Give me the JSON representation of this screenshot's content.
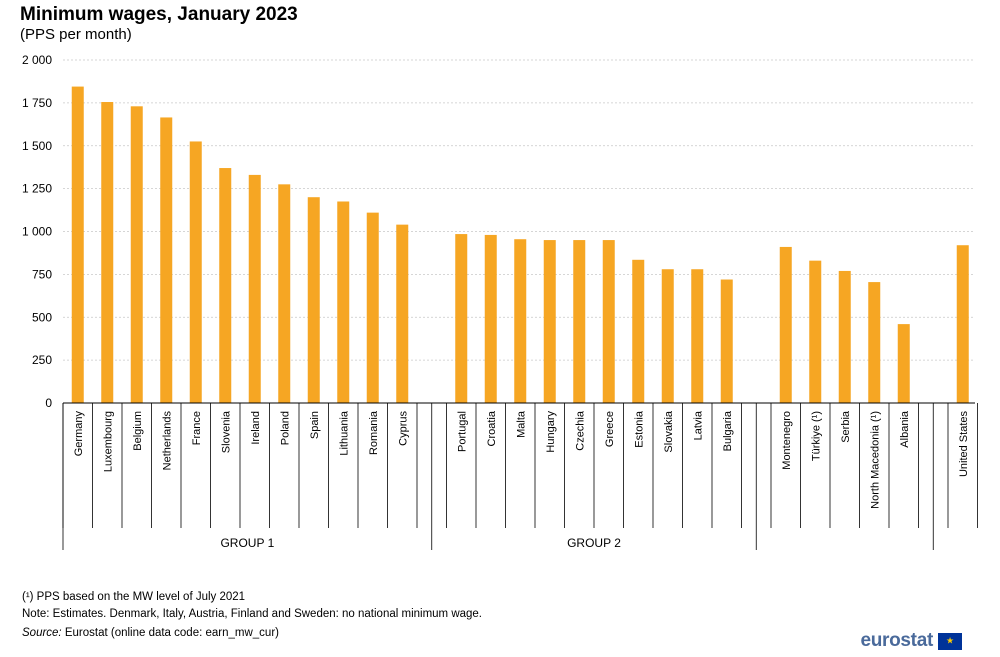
{
  "header": {
    "title": "Minimum wages, January 2023",
    "subtitle": "(PPS per month)"
  },
  "chart_data": {
    "type": "bar",
    "title": "Minimum wages, January 2023",
    "subtitle": "(PPS per month)",
    "xlabel": "",
    "ylabel": "",
    "ylim": [
      0,
      2000
    ],
    "yticks": [
      0,
      250,
      500,
      750,
      1000,
      1250,
      1500,
      1750,
      2000
    ],
    "ytick_labels": [
      "0",
      "250",
      "500",
      "750",
      "1 000",
      "1 250",
      "1 500",
      "1 750",
      "2 000"
    ],
    "grid": true,
    "color": "#f6a623",
    "groups": [
      {
        "name": "GROUP 1",
        "categories": [
          "Germany",
          "Luxembourg",
          "Belgium",
          "Netherlands",
          "France",
          "Slovenia",
          "Ireland",
          "Poland",
          "Spain",
          "Lithuania",
          "Romania",
          "Cyprus"
        ],
        "values": [
          1845,
          1755,
          1730,
          1665,
          1525,
          1370,
          1330,
          1275,
          1200,
          1175,
          1110,
          1040
        ]
      },
      {
        "name": "GROUP 2",
        "categories": [
          "Portugal",
          "Croatia",
          "Malta",
          "Hungary",
          "Czechia",
          "Greece",
          "Estonia",
          "Slovakia",
          "Latvia",
          "Bulgaria"
        ],
        "values": [
          985,
          980,
          955,
          950,
          950,
          950,
          835,
          780,
          780,
          720
        ]
      },
      {
        "name": "",
        "categories": [
          "Montenegro",
          "Türkiye (¹)",
          "Serbia",
          "North Macedonia (¹)",
          "Albania"
        ],
        "values": [
          910,
          830,
          770,
          705,
          460
        ]
      },
      {
        "name": "",
        "categories": [
          "United States"
        ],
        "values": [
          920
        ]
      }
    ]
  },
  "footer": {
    "note1": "(¹) PPS based on the MW level of July 2021",
    "note2": "Note: Estimates. Denmark, Italy, Austria, Finland and Sweden: no national minimum wage.",
    "source_label": "Source:",
    "source_text": " Eurostat (online data code: earn_mw_cur)",
    "logo_text": "eurostat",
    "flag_icon": "★"
  }
}
